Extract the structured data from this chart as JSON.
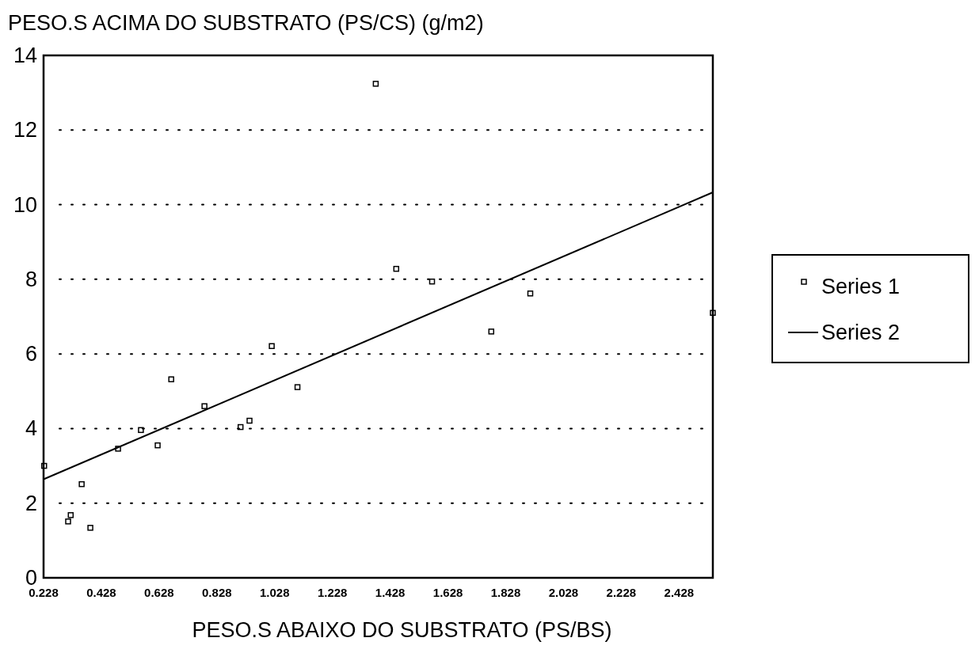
{
  "chart_data": {
    "type": "scatter",
    "title": "PESO.S ACIMA DO SUBSTRATO (PS/CS) (g/m2)",
    "xlabel": "PESO.S ABAIXO DO SUBSTRATO (PS/BS)",
    "xlim": [
      0.228,
      2.545
    ],
    "xticks": [
      0.228,
      0.428,
      0.628,
      0.828,
      1.028,
      1.228,
      1.428,
      1.628,
      1.828,
      2.028,
      2.228,
      2.428
    ],
    "ylim": [
      0,
      14
    ],
    "yticks": [
      0,
      2,
      4,
      6,
      8,
      10,
      12,
      14
    ],
    "grid": "y",
    "legend": "right",
    "series": [
      {
        "name": "Series 1",
        "marker": "square",
        "color": "#000000",
        "x": [
          0.23,
          0.313,
          0.322,
          0.36,
          0.39,
          0.486,
          0.565,
          0.623,
          0.67,
          0.785,
          0.91,
          0.941,
          1.018,
          1.107,
          1.378,
          1.449,
          1.573,
          1.778,
          1.913,
          2.545
        ],
        "values": [
          3.0,
          1.51,
          1.68,
          2.51,
          1.34,
          3.46,
          3.96,
          3.55,
          5.32,
          4.6,
          4.04,
          4.21,
          6.21,
          5.11,
          13.24,
          8.28,
          7.94,
          6.6,
          7.62,
          7.1
        ]
      },
      {
        "name": "Series 2",
        "type": "line",
        "color": "#000000",
        "x": [
          0.228,
          2.545
        ],
        "values": [
          2.64,
          10.33
        ],
        "marker": "none",
        "line_style": "solid"
      }
    ]
  }
}
